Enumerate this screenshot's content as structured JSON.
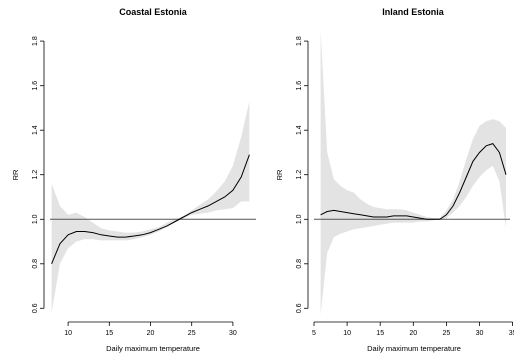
{
  "chart_data": [
    {
      "type": "line",
      "title": "Coastal Estonia",
      "xlabel": "Daily maximum temperature",
      "ylabel": "RR",
      "xlim": [
        7.8,
        32.8
      ],
      "ylim": [
        0.57,
        1.85
      ],
      "xticks": [
        10,
        15,
        20,
        25,
        30
      ],
      "xtick_labels": [
        "10",
        "15",
        "20",
        "25",
        "30"
      ],
      "yticks": [
        0.6,
        0.8,
        1.0,
        1.2,
        1.4,
        1.6,
        1.8
      ],
      "ytick_labels": [
        "0.6",
        "0.8",
        "1.0",
        "1.2",
        "1.4",
        "1.6",
        "1.8"
      ],
      "reference_line": 1.0,
      "grid": false,
      "series": [
        {
          "x": [
            8,
            9,
            10,
            11,
            12,
            13,
            14,
            15,
            16,
            17,
            18,
            19,
            20,
            21,
            22,
            23,
            24,
            25,
            26,
            27,
            28,
            29,
            30,
            31,
            32
          ],
          "y": [
            0.8,
            0.89,
            0.93,
            0.945,
            0.945,
            0.94,
            0.93,
            0.925,
            0.92,
            0.92,
            0.925,
            0.93,
            0.94,
            0.955,
            0.97,
            0.99,
            1.01,
            1.03,
            1.045,
            1.06,
            1.08,
            1.1,
            1.13,
            1.19,
            1.29
          ],
          "lower": [
            0.58,
            0.8,
            0.87,
            0.9,
            0.91,
            0.91,
            0.905,
            0.905,
            0.905,
            0.905,
            0.91,
            0.92,
            0.93,
            0.945,
            0.965,
            0.985,
            1.005,
            1.02,
            1.025,
            1.03,
            1.04,
            1.045,
            1.05,
            1.08,
            1.08
          ],
          "upper": [
            1.16,
            1.06,
            1.02,
            1.03,
            1.01,
            0.985,
            0.96,
            0.95,
            0.945,
            0.94,
            0.94,
            0.945,
            0.955,
            0.965,
            0.985,
            1.0,
            1.015,
            1.04,
            1.065,
            1.09,
            1.125,
            1.17,
            1.24,
            1.37,
            1.53
          ]
        }
      ]
    },
    {
      "type": "line",
      "title": "Inland Estonia",
      "xlabel": "Daily maximum temperature",
      "ylabel": "RR",
      "xlim": [
        5.0,
        34.6
      ],
      "ylim": [
        0.57,
        1.85
      ],
      "xticks": [
        5,
        10,
        15,
        20,
        25,
        30,
        35
      ],
      "xtick_labels": [
        "5",
        "10",
        "15",
        "20",
        "25",
        "30",
        "35"
      ],
      "yticks": [
        0.6,
        0.8,
        1.0,
        1.2,
        1.4,
        1.6,
        1.8
      ],
      "ytick_labels": [
        "0.6",
        "0.8",
        "1.0",
        "1.2",
        "1.4",
        "1.6",
        "1.8"
      ],
      "reference_line": 1.0,
      "grid": false,
      "series": [
        {
          "x": [
            6,
            7,
            8,
            9,
            10,
            11,
            12,
            13,
            14,
            15,
            16,
            17,
            18,
            19,
            20,
            21,
            22,
            23,
            24,
            25,
            26,
            27,
            28,
            29,
            30,
            31,
            32,
            33,
            34
          ],
          "y": [
            1.02,
            1.035,
            1.04,
            1.035,
            1.03,
            1.025,
            1.02,
            1.015,
            1.01,
            1.01,
            1.01,
            1.015,
            1.015,
            1.015,
            1.01,
            1.005,
            1.0,
            1.0,
            1.0,
            1.02,
            1.06,
            1.12,
            1.19,
            1.26,
            1.3,
            1.33,
            1.34,
            1.3,
            1.2
          ],
          "lower": [
            0.57,
            0.85,
            0.92,
            0.935,
            0.945,
            0.955,
            0.96,
            0.965,
            0.97,
            0.975,
            0.98,
            0.985,
            0.985,
            0.985,
            0.985,
            0.99,
            0.99,
            0.995,
            1.0,
            1.005,
            1.03,
            1.06,
            1.1,
            1.15,
            1.19,
            1.22,
            1.24,
            1.17,
            0.96
          ],
          "upper": [
            1.85,
            1.3,
            1.18,
            1.15,
            1.13,
            1.12,
            1.09,
            1.07,
            1.055,
            1.05,
            1.045,
            1.045,
            1.045,
            1.04,
            1.03,
            1.02,
            1.01,
            1.005,
            1.005,
            1.04,
            1.09,
            1.17,
            1.27,
            1.36,
            1.42,
            1.44,
            1.45,
            1.44,
            1.41
          ]
        }
      ]
    }
  ]
}
